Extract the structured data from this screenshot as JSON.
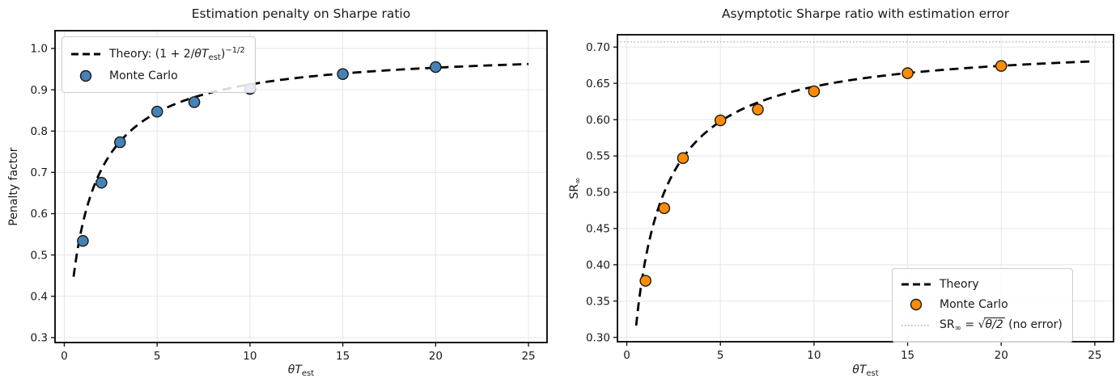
{
  "figure": {
    "background": "#ffffff",
    "text_color": "#1a1a1a",
    "grid_color": "#e6e6e6"
  },
  "chart_data": [
    {
      "type": "scatter",
      "title": "Estimation penalty on Sharpe ratio",
      "xlabel": "θT_est",
      "xlabel_parts": {
        "var": "θT",
        "sub": "est"
      },
      "ylabel": "Penalty factor",
      "xlim": [
        -0.5,
        26.0
      ],
      "ylim": [
        0.288,
        1.043
      ],
      "xticks": [
        {
          "v": 0,
          "label": "0"
        },
        {
          "v": 5,
          "label": "5"
        },
        {
          "v": 10,
          "label": "10"
        },
        {
          "v": 15,
          "label": "15"
        },
        {
          "v": 20,
          "label": "20"
        },
        {
          "v": 25,
          "label": "25"
        }
      ],
      "yticks": [
        {
          "v": 0.3,
          "label": "0.3"
        },
        {
          "v": 0.4,
          "label": "0.4"
        },
        {
          "v": 0.5,
          "label": "0.5"
        },
        {
          "v": 0.6,
          "label": "0.6"
        },
        {
          "v": 0.7,
          "label": "0.7"
        },
        {
          "v": 0.8,
          "label": "0.8"
        },
        {
          "v": 0.9,
          "label": "0.9"
        },
        {
          "v": 1.0,
          "label": "1.0"
        }
      ],
      "grid": true,
      "legend": {
        "position": "upper left",
        "theory": {
          "prefix": "Theory: (1 + 2/",
          "var": "θT",
          "sub": "est",
          "close": ")",
          "sup": "−1/2"
        },
        "monte_carlo": "Monte Carlo"
      },
      "series": [
        {
          "name": "Theory: (1 + 2/θT_est)^(−1/2)",
          "type": "line",
          "linestyle": "dashed",
          "color": "#000000",
          "curve": {
            "formula": "amp*(1 + 2/x)^(-1/2)",
            "amp": 1.0,
            "x_start": 0.5,
            "x_end": 25.0
          }
        },
        {
          "name": "Monte Carlo",
          "type": "scatter",
          "color": "#4682B4",
          "edge_color": "#1a1a1a",
          "x": [
            1,
            2,
            3,
            5,
            7,
            10,
            15,
            20
          ],
          "y": [
            0.534,
            0.675,
            0.773,
            0.847,
            0.87,
            0.902,
            0.938,
            0.955
          ]
        }
      ]
    },
    {
      "type": "scatter",
      "title": "Asymptotic Sharpe ratio with estimation error",
      "xlabel": "θT_est",
      "xlabel_parts": {
        "var": "θT",
        "sub": "est"
      },
      "ylabel": "SR_∞",
      "ylabel_parts": {
        "name": "SR",
        "sub": "∞"
      },
      "xlim": [
        -0.5,
        26.0
      ],
      "ylim": [
        0.294,
        0.717
      ],
      "xticks": [
        {
          "v": 0,
          "label": "0"
        },
        {
          "v": 5,
          "label": "5"
        },
        {
          "v": 10,
          "label": "10"
        },
        {
          "v": 15,
          "label": "15"
        },
        {
          "v": 20,
          "label": "20"
        },
        {
          "v": 25,
          "label": "25"
        }
      ],
      "yticks": [
        {
          "v": 0.3,
          "label": "0.30"
        },
        {
          "v": 0.35,
          "label": "0.35"
        },
        {
          "v": 0.4,
          "label": "0.40"
        },
        {
          "v": 0.45,
          "label": "0.45"
        },
        {
          "v": 0.5,
          "label": "0.50"
        },
        {
          "v": 0.55,
          "label": "0.55"
        },
        {
          "v": 0.6,
          "label": "0.60"
        },
        {
          "v": 0.65,
          "label": "0.65"
        },
        {
          "v": 0.7,
          "label": "0.70"
        }
      ],
      "grid": true,
      "reference_line": {
        "value": 0.7071,
        "linestyle": "dotted",
        "color": "#aaaaaa",
        "label": "SR∞ = √θ/2 (no error)"
      },
      "legend": {
        "position": "lower right",
        "theory": "Theory",
        "monte_carlo": "Monte Carlo",
        "reference": {
          "name": "SR",
          "sub": "∞",
          "eq": " = ",
          "root": "√",
          "radicand": "θ/2",
          "suffix": " (no error)"
        }
      },
      "series": [
        {
          "name": "Theory",
          "type": "line",
          "linestyle": "dashed",
          "color": "#000000",
          "curve": {
            "formula": "amp*(1 + 2/x)^(-1/2)",
            "amp": 0.7071,
            "x_start": 0.5,
            "x_end": 25.0
          }
        },
        {
          "name": "Monte Carlo",
          "type": "scatter",
          "color": "#FF8C00",
          "edge_color": "#1a1a1a",
          "x": [
            1,
            2,
            3,
            5,
            7,
            10,
            15,
            20
          ],
          "y": [
            0.378,
            0.478,
            0.547,
            0.599,
            0.614,
            0.639,
            0.664,
            0.674
          ]
        }
      ]
    }
  ]
}
